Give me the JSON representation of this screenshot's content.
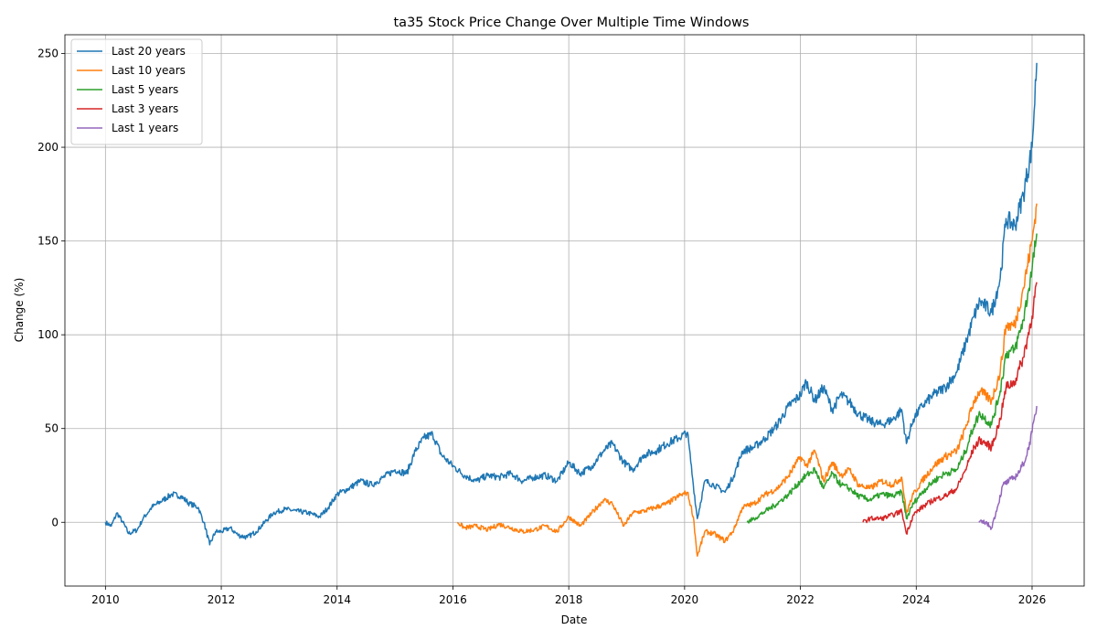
{
  "chart_data": {
    "type": "line",
    "title": "ta35 Stock Price Change Over Multiple Time Windows",
    "xlabel": "Date",
    "ylabel": "Change (%)",
    "xlim": [
      2009.3,
      2026.9
    ],
    "ylim": [
      -34,
      260
    ],
    "xticks": [
      2010,
      2012,
      2014,
      2016,
      2018,
      2020,
      2022,
      2024,
      2026
    ],
    "yticks": [
      0,
      50,
      100,
      150,
      200,
      250
    ],
    "grid": true,
    "legend_position": "top-left",
    "series": [
      {
        "name": "Last 20 years",
        "color": "#1f77b4",
        "x": [
          2010.0,
          2010.1,
          2010.2,
          2010.3,
          2010.4,
          2010.55,
          2010.65,
          2010.8,
          2011.0,
          2011.15,
          2011.3,
          2011.45,
          2011.6,
          2011.7,
          2011.8,
          2011.9,
          2012.0,
          2012.15,
          2012.3,
          2012.45,
          2012.6,
          2012.75,
          2012.9,
          2013.1,
          2013.3,
          2013.5,
          2013.7,
          2013.85,
          2014.0,
          2014.2,
          2014.4,
          2014.6,
          2014.8,
          2015.0,
          2015.2,
          2015.35,
          2015.5,
          2015.65,
          2015.8,
          2016.0,
          2016.2,
          2016.4,
          2016.6,
          2016.8,
          2017.0,
          2017.2,
          2017.4,
          2017.6,
          2017.8,
          2018.0,
          2018.2,
          2018.4,
          2018.6,
          2018.75,
          2018.95,
          2019.1,
          2019.3,
          2019.5,
          2019.7,
          2019.9,
          2020.05,
          2020.15,
          2020.22,
          2020.35,
          2020.5,
          2020.7,
          2020.85,
          2021.0,
          2021.2,
          2021.4,
          2021.6,
          2021.8,
          2022.0,
          2022.1,
          2022.25,
          2022.4,
          2022.55,
          2022.7,
          2022.85,
          2023.0,
          2023.2,
          2023.4,
          2023.6,
          2023.75,
          2023.83,
          2023.95,
          2024.1,
          2024.3,
          2024.5,
          2024.7,
          2024.85,
          2025.0,
          2025.1,
          2025.3,
          2025.45,
          2025.55,
          2025.7,
          2025.85,
          2026.0,
          2026.08
        ],
        "values": [
          0,
          -2,
          5,
          0,
          -6,
          -4,
          2,
          8,
          12,
          15,
          14,
          10,
          8,
          0,
          -12,
          -5,
          -5,
          -3,
          -7,
          -8,
          -5,
          0,
          5,
          7,
          6,
          5,
          3,
          8,
          15,
          18,
          22,
          20,
          24,
          28,
          26,
          38,
          45,
          47,
          36,
          30,
          25,
          22,
          25,
          24,
          26,
          22,
          24,
          25,
          22,
          32,
          26,
          30,
          38,
          42,
          32,
          28,
          36,
          38,
          42,
          45,
          48,
          20,
          2,
          22,
          20,
          16,
          25,
          38,
          40,
          45,
          52,
          62,
          68,
          75,
          65,
          72,
          60,
          68,
          64,
          58,
          54,
          52,
          55,
          60,
          42,
          55,
          62,
          68,
          72,
          80,
          95,
          110,
          118,
          112,
          130,
          162,
          158,
          175,
          200,
          245
        ]
      },
      {
        "name": "Last 10 years",
        "color": "#ff7f0e",
        "x": [
          2016.08,
          2016.2,
          2016.4,
          2016.6,
          2016.8,
          2017.0,
          2017.2,
          2017.4,
          2017.6,
          2017.8,
          2018.0,
          2018.2,
          2018.4,
          2018.6,
          2018.75,
          2018.95,
          2019.1,
          2019.3,
          2019.5,
          2019.7,
          2019.9,
          2020.05,
          2020.15,
          2020.22,
          2020.35,
          2020.5,
          2020.7,
          2020.85,
          2021.0,
          2021.2,
          2021.4,
          2021.6,
          2021.8,
          2022.0,
          2022.1,
          2022.25,
          2022.4,
          2022.55,
          2022.7,
          2022.85,
          2023.0,
          2023.2,
          2023.4,
          2023.6,
          2023.75,
          2023.83,
          2023.95,
          2024.1,
          2024.3,
          2024.5,
          2024.7,
          2024.85,
          2025.0,
          2025.1,
          2025.3,
          2025.45,
          2025.55,
          2025.7,
          2025.85,
          2026.0,
          2026.08
        ],
        "values": [
          0,
          -3,
          -2,
          -4,
          -1,
          -3,
          -5,
          -4,
          -2,
          -5,
          3,
          -2,
          5,
          12,
          10,
          -2,
          5,
          6,
          8,
          10,
          14,
          16,
          3,
          -18,
          -5,
          -6,
          -10,
          -4,
          8,
          10,
          15,
          18,
          25,
          35,
          30,
          38,
          22,
          32,
          25,
          28,
          20,
          18,
          22,
          20,
          24,
          5,
          15,
          22,
          30,
          35,
          38,
          50,
          65,
          70,
          65,
          80,
          105,
          105,
          125,
          150,
          170
        ]
      },
      {
        "name": "Last 5 years",
        "color": "#2ca02c",
        "x": [
          2021.08,
          2021.2,
          2021.4,
          2021.6,
          2021.8,
          2022.0,
          2022.1,
          2022.25,
          2022.4,
          2022.55,
          2022.7,
          2022.85,
          2023.0,
          2023.2,
          2023.4,
          2023.6,
          2023.75,
          2023.83,
          2023.95,
          2024.1,
          2024.3,
          2024.5,
          2024.7,
          2024.85,
          2025.0,
          2025.1,
          2025.3,
          2025.45,
          2025.55,
          2025.7,
          2025.85,
          2026.0,
          2026.08
        ],
        "values": [
          0,
          2,
          6,
          10,
          15,
          22,
          25,
          28,
          18,
          26,
          20,
          18,
          14,
          12,
          15,
          14,
          16,
          2,
          10,
          16,
          22,
          26,
          28,
          38,
          52,
          58,
          52,
          70,
          90,
          92,
          108,
          135,
          154
        ]
      },
      {
        "name": "Last 3 years",
        "color": "#d62728",
        "x": [
          2023.08,
          2023.2,
          2023.4,
          2023.6,
          2023.75,
          2023.83,
          2023.95,
          2024.1,
          2024.3,
          2024.5,
          2024.7,
          2024.85,
          2025.0,
          2025.1,
          2025.3,
          2025.45,
          2025.55,
          2025.7,
          2025.85,
          2026.0,
          2026.08
        ],
        "values": [
          0,
          2,
          2,
          4,
          6,
          -6,
          4,
          8,
          12,
          14,
          18,
          28,
          40,
          44,
          40,
          55,
          72,
          75,
          88,
          110,
          128
        ]
      },
      {
        "name": "Last 1 years",
        "color": "#9467bd",
        "x": [
          2025.08,
          2025.2,
          2025.3,
          2025.4,
          2025.5,
          2025.6,
          2025.7,
          2025.8,
          2025.9,
          2026.0,
          2026.08
        ],
        "values": [
          0,
          0,
          -3,
          8,
          20,
          22,
          24,
          28,
          35,
          48,
          62
        ]
      }
    ]
  }
}
